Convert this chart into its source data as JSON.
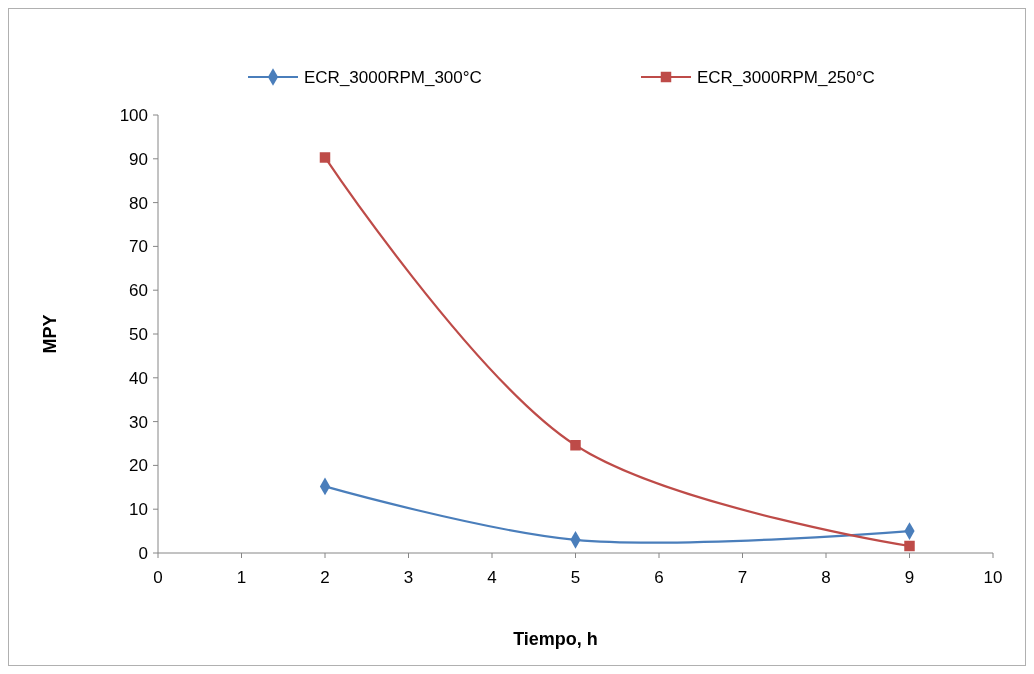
{
  "chart_data": {
    "type": "line",
    "xlabel": "Tiempo, h",
    "ylabel": "MPY",
    "xlim": [
      0,
      10
    ],
    "xticks": [
      0,
      1,
      2,
      3,
      4,
      5,
      6,
      7,
      8,
      9,
      10
    ],
    "ylim": [
      0,
      100
    ],
    "yticks": [
      0,
      10,
      20,
      30,
      40,
      50,
      60,
      70,
      80,
      90,
      100
    ],
    "grid": false,
    "legend": "top",
    "line_style": "solid",
    "series": [
      {
        "name": "ECR_3000RPM_300°C",
        "color": "#4a7ebb",
        "marker": "diamond",
        "x": [
          2,
          5,
          9
        ],
        "values": [
          15.2,
          3,
          5
        ]
      },
      {
        "name": "ECR_3000RPM_250°C",
        "color": "#be4b48",
        "marker": "square",
        "x": [
          2,
          5,
          9
        ],
        "values": [
          90.3,
          24.6,
          1.6
        ]
      }
    ]
  }
}
